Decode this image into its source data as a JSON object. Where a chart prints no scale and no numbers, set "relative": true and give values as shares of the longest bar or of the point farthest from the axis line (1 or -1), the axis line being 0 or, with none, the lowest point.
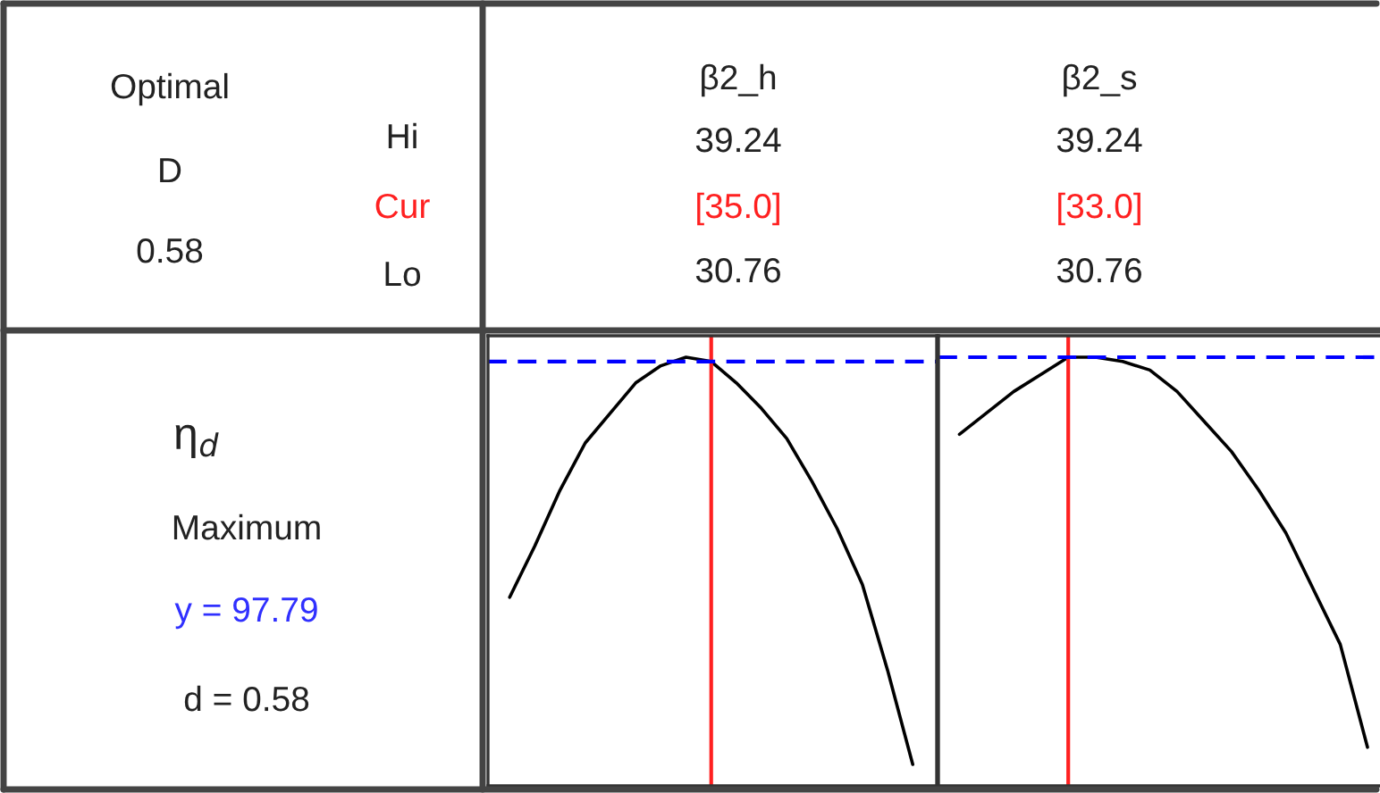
{
  "chart_data": [
    {
      "type": "other",
      "annotations": [
        "Optimal",
        "D",
        "0.58",
        "Hi",
        "Cur",
        "Lo",
        "η$_{d}$",
        "Maximum",
        "y = 97.79",
        "d = 0.58"
      ]
    },
    {
      "type": "line",
      "title": "β2_h",
      "relative": true,
      "annotations": [
        "39.24",
        "[35.0]",
        "30.76"
      ],
      "categories": [
        null,
        null,
        null,
        null,
        null,
        null,
        null,
        null,
        null,
        null,
        null,
        null,
        null,
        null,
        null,
        null,
        null
      ],
      "series": [
        {
          "color": "#000000",
          "values": [
            0.44,
            0.56,
            0.69,
            0.8,
            0.87,
            0.94,
            0.98,
            1.0,
            0.99,
            0.94,
            0.88,
            0.81,
            0.71,
            0.6,
            0.47,
            0.27,
            0.05
          ]
        }
      ],
      "ref_lines": [
        {
          "axis": "y",
          "value": 0.99,
          "color": "#0000ff",
          "line_style": "dashed"
        }
      ]
    },
    {
      "type": "line",
      "title": "β2_s",
      "relative": true,
      "annotations": [
        "39.24",
        "[33.0]",
        "30.76"
      ],
      "categories": [
        null,
        null,
        null,
        null,
        null,
        null,
        null,
        null,
        null,
        null,
        null,
        null,
        null,
        null,
        null,
        null
      ],
      "series": [
        {
          "color": "#000000",
          "values": [
            0.82,
            0.87,
            0.92,
            0.96,
            1.0,
            1.0,
            0.99,
            0.97,
            0.92,
            0.85,
            0.78,
            0.69,
            0.59,
            0.46,
            0.33,
            0.09
          ]
        }
      ],
      "ref_lines": [
        {
          "axis": "y",
          "value": 1.0,
          "color": "#0000ff",
          "line_style": "dashed"
        }
      ]
    }
  ]
}
